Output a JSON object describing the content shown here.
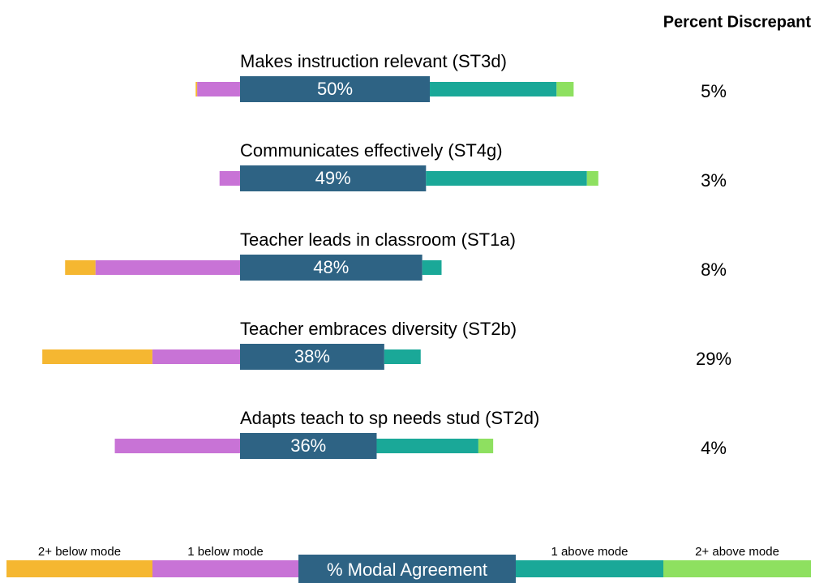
{
  "chart_data": {
    "type": "bar",
    "stacking": "diverging",
    "categories": [
      "Makes instruction relevant (ST3d)",
      "Communicates effectively (ST4g)",
      "Teacher leads in classroom (ST1a)",
      "Teacher embraces diversity (ST2b)",
      "Adapts teach to sp needs stud (ST2d)"
    ],
    "series": [
      {
        "name": "2+ below mode",
        "color": "#f5b731",
        "side": "left",
        "values": [
          0.4,
          0,
          8,
          29,
          0
        ]
      },
      {
        "name": "1 below mode",
        "color": "#c873d6",
        "side": "left",
        "values": [
          11.3,
          5.4,
          38.1,
          23.1,
          33
        ]
      },
      {
        "name": "% Modal Agreement",
        "color": "#2e6384",
        "side": "center",
        "values": [
          50,
          49,
          48,
          38,
          36
        ],
        "value_labels": [
          "50%",
          "49%",
          "48%",
          "38%",
          "36%"
        ]
      },
      {
        "name": "1 above mode",
        "color": "#1aa898",
        "side": "right",
        "values": [
          33.4,
          42.4,
          5.1,
          9.6,
          26.8
        ]
      },
      {
        "name": "2+ above mode",
        "color": "#8ee060",
        "side": "right",
        "values": [
          4.5,
          3,
          0,
          0,
          3.9
        ]
      }
    ],
    "discrepant": {
      "title": "Percent Discrepant",
      "values": [
        5,
        3,
        8,
        29,
        4
      ],
      "value_labels": [
        "5%",
        "3%",
        "8%",
        "29%",
        "4%"
      ]
    }
  }
}
